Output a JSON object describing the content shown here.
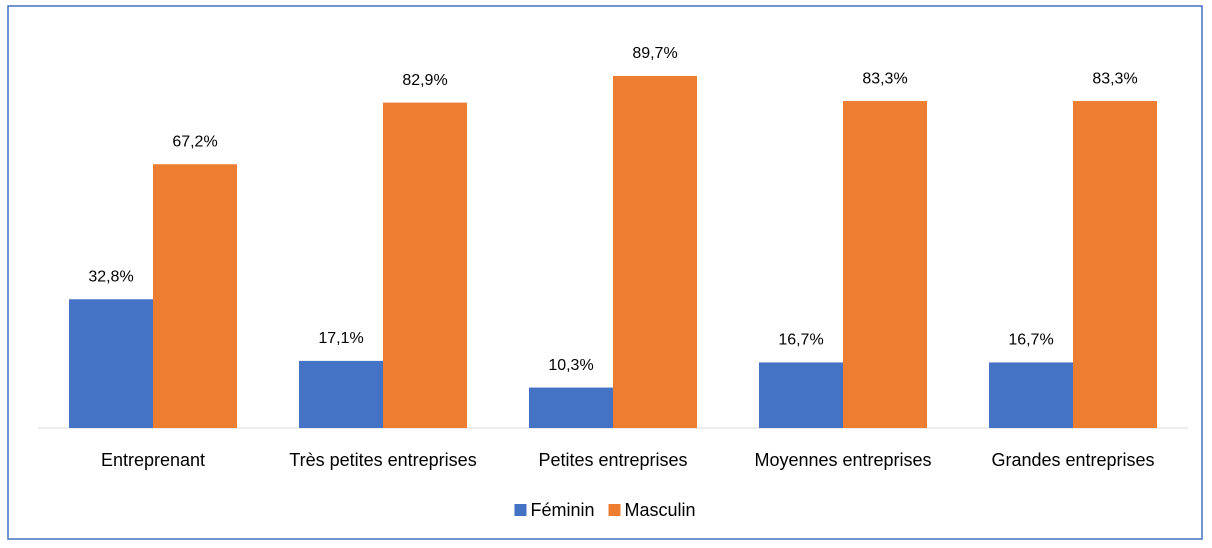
{
  "chart_data": {
    "type": "bar",
    "categories": [
      "Entreprenant",
      "Très petites entreprises",
      "Petites entreprises",
      "Moyennes entreprises",
      "Grandes entreprises"
    ],
    "series": [
      {
        "name": "Féminin",
        "color": "#4472c4",
        "values": [
          32.8,
          17.1,
          10.3,
          16.7,
          16.7
        ],
        "value_labels": [
          "32,8%",
          "17,1%",
          "10,3%",
          "16,7%",
          "16,7%"
        ]
      },
      {
        "name": "Masculin",
        "color": "#ed7d31",
        "values": [
          67.2,
          82.9,
          89.7,
          83.3,
          83.3
        ],
        "value_labels": [
          "67,2%",
          "82,9%",
          "89,7%",
          "83,3%",
          "83,3%"
        ]
      }
    ],
    "legend": "bottom"
  }
}
